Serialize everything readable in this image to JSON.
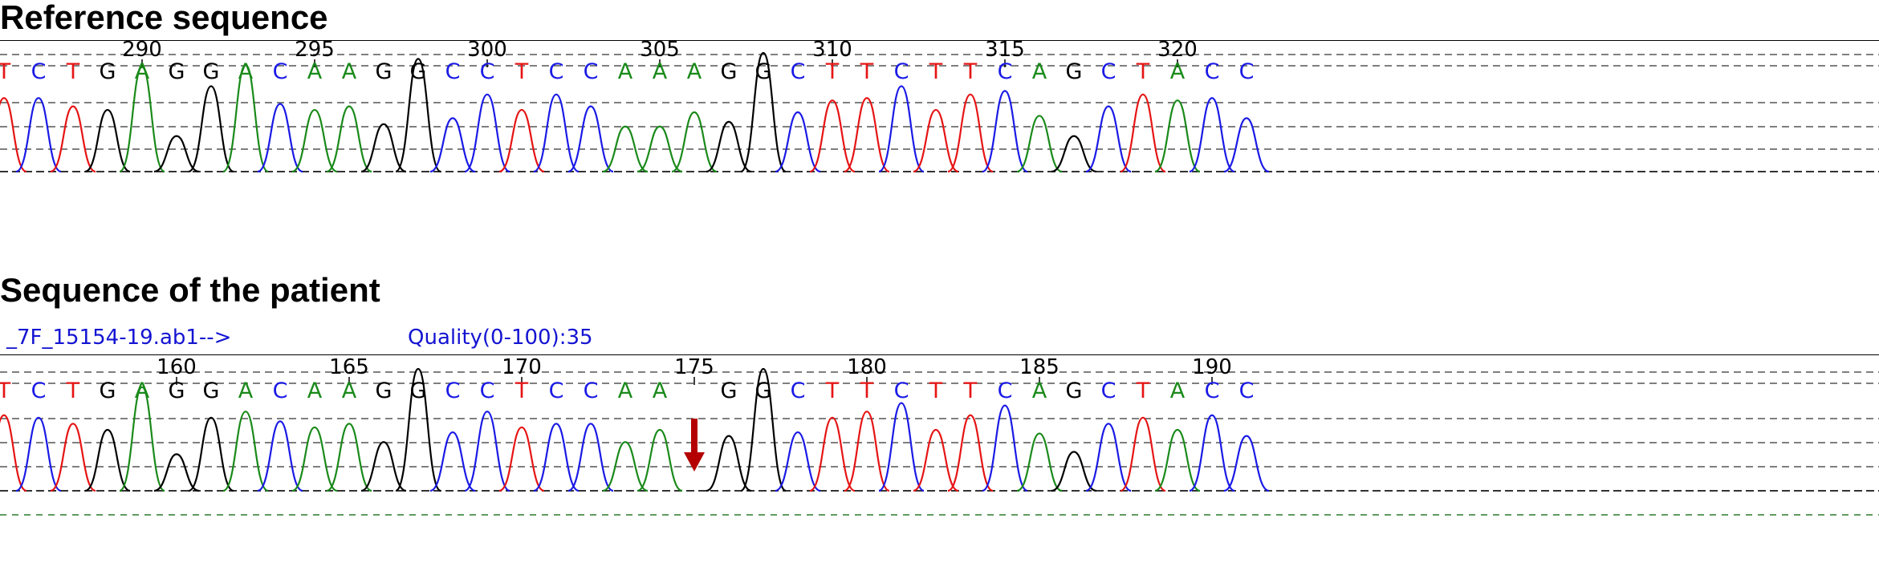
{
  "colors": {
    "A": "#1a8a1a",
    "C": "#1a1ae6",
    "G": "#000000",
    "T": "#e61414",
    "mutation_arrow": "#b40000",
    "link_text": "#1414d2"
  },
  "reference": {
    "title": "Reference sequence",
    "bases": [
      "T",
      "C",
      "T",
      "G",
      "A",
      "G",
      "G",
      "A",
      "C",
      "A",
      "A",
      "G",
      "G",
      "C",
      "C",
      "T",
      "C",
      "C",
      "A",
      "A",
      "A",
      "G",
      "G",
      "C",
      "T",
      "T",
      "C",
      "T",
      "T",
      "C",
      "A",
      "G",
      "C",
      "T",
      "A",
      "C",
      "C"
    ],
    "position_labels": [
      "290",
      "295",
      "300",
      "305",
      "310",
      "315",
      "320"
    ]
  },
  "patient": {
    "title": "Sequence of the patient",
    "file_label": "_7F_15154-19.ab1-->",
    "quality_label": "Quality(0-100):35",
    "bases": [
      "T",
      "C",
      "T",
      "G",
      "A",
      "G",
      "G",
      "A",
      "C",
      "A",
      "A",
      "G",
      "G",
      "C",
      "C",
      "T",
      "C",
      "C",
      "A",
      "A",
      "",
      "G",
      "G",
      "C",
      "T",
      "T",
      "C",
      "T",
      "T",
      "C",
      "A",
      "G",
      "C",
      "T",
      "A",
      "C",
      "C"
    ],
    "position_labels": [
      "160",
      "165",
      "170",
      "175",
      "180",
      "185",
      "190"
    ],
    "mutation_marker": "deletion-arrow"
  },
  "chart_data": {
    "type": "chromatogram",
    "traces": [
      {
        "name": "Reference sequence",
        "start_position": 286,
        "bases": "TCTGAGGACAAGGCCTCCAAAGGCTTCTTCAGCTACC",
        "peak_heights": [
          0.62,
          0.62,
          0.55,
          0.52,
          0.88,
          0.3,
          0.72,
          0.9,
          0.57,
          0.52,
          0.55,
          0.4,
          0.95,
          0.45,
          0.65,
          0.52,
          0.65,
          0.55,
          0.38,
          0.38,
          0.5,
          0.42,
          1.0,
          0.5,
          0.6,
          0.62,
          0.72,
          0.52,
          0.65,
          0.68,
          0.47,
          0.3,
          0.55,
          0.65,
          0.6,
          0.62,
          0.45
        ]
      },
      {
        "name": "Sequence of the patient",
        "start_position": 155,
        "bases": "TCTGAGGACAAGGCCTCCAA-GGCTTCTTCAGCTACC",
        "peak_heights": [
          0.62,
          0.6,
          0.55,
          0.5,
          0.85,
          0.3,
          0.6,
          0.65,
          0.57,
          0.52,
          0.55,
          0.4,
          1.0,
          0.48,
          0.65,
          0.52,
          0.55,
          0.55,
          0.4,
          0.5,
          0,
          0.45,
          1.0,
          0.48,
          0.6,
          0.65,
          0.72,
          0.5,
          0.62,
          0.7,
          0.47,
          0.32,
          0.55,
          0.6,
          0.5,
          0.62,
          0.45
        ]
      }
    ]
  }
}
